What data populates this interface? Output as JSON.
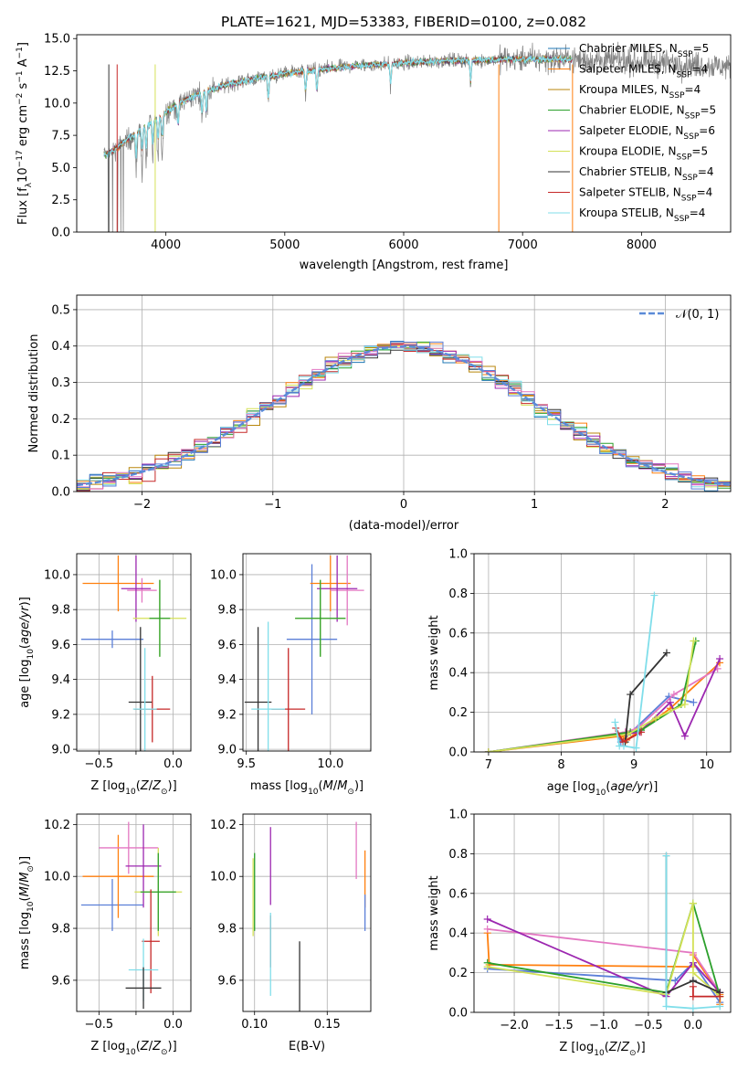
{
  "figure_title": "PLATE=1621, MJD=53383, FIBERID=0100, z=0.082",
  "models": [
    {
      "label": "Chabrier MILES, N",
      "nssp": "=5",
      "color": "#1f77b4"
    },
    {
      "label": "Salpeter MILES, N",
      "nssp": "=4",
      "color": "#ff7f0e"
    },
    {
      "label": "Kroupa MILES, N",
      "nssp": "=4",
      "color": "#b8860b"
    },
    {
      "label": "Chabrier ELODIE, N",
      "nssp": "=5",
      "color": "#2ca02c"
    },
    {
      "label": "Salpeter ELODIE, N",
      "nssp": "=6",
      "color": "#9c27b0"
    },
    {
      "label": "Kroupa ELODIE, N",
      "nssp": "=5",
      "color": "#d4e157"
    },
    {
      "label": "Chabrier STELIB, N",
      "nssp": "=4",
      "color": "#333333"
    },
    {
      "label": "Salpeter STELIB, N",
      "nssp": "=4",
      "color": "#c62828"
    },
    {
      "label": "Kroupa STELIB, N",
      "nssp": "=4",
      "color": "#80deea"
    }
  ],
  "chart_data": [
    {
      "id": "spectrum",
      "type": "line",
      "xlabel": "wavelength [Angstrom, rest frame]",
      "ylabel": "Flux [f",
      "xlim": [
        3250,
        8750
      ],
      "ylim": [
        0,
        15.3
      ],
      "xticks": [
        4000,
        5000,
        6000,
        7000,
        8000
      ],
      "yticks": [
        0.0,
        2.5,
        5.0,
        7.5,
        10.0,
        12.5,
        15.0
      ],
      "data_color": "#808080",
      "data_anchor_x": [
        3500,
        3550,
        3600,
        3650,
        3700,
        3750,
        3800,
        3850,
        3900,
        3950,
        4000,
        4100,
        4200,
        4300,
        4400,
        4500,
        4600,
        4700,
        4800,
        4900,
        5000,
        5200,
        5400,
        5600,
        5800,
        6000,
        6200,
        6400,
        6600,
        6800,
        7000,
        7200,
        7400,
        7600,
        7800,
        8000,
        8200,
        8400,
        8600,
        8750
      ],
      "data_anchor_y": [
        6.0,
        6.3,
        6.6,
        7.0,
        7.3,
        7.6,
        8.0,
        8.3,
        8.6,
        8.9,
        9.3,
        9.9,
        10.4,
        10.8,
        11.1,
        11.4,
        11.6,
        11.8,
        12.0,
        12.1,
        12.3,
        12.5,
        12.7,
        12.9,
        13.0,
        13.1,
        13.2,
        13.3,
        13.3,
        13.4,
        13.4,
        13.4,
        13.4,
        13.3,
        13.3,
        13.2,
        13.1,
        13.0,
        12.9,
        12.8
      ],
      "model_end_x": 7420
    },
    {
      "id": "residual_hist",
      "type": "histogram",
      "xlabel": "(data-model)/error",
      "ylabel": "Normed distribution",
      "xlim": [
        -2.5,
        2.5
      ],
      "ylim": [
        0,
        0.54
      ],
      "xticks": [
        -2,
        -1,
        0,
        1,
        2
      ],
      "yticks": [
        0.0,
        0.1,
        0.2,
        0.3,
        0.4,
        0.5
      ],
      "bin_width": 0.1,
      "legend": "𝒩(0, 1)",
      "legend_color": "#5b8bd8"
    },
    {
      "id": "age_vs_Z",
      "type": "errorbar",
      "xlabel": "Z [log",
      "ylabel": "age  [log",
      "xlim": [
        -0.65,
        0.12
      ],
      "ylim": [
        8.99,
        10.12
      ],
      "xticks": [
        -0.5,
        -0.25,
        0.0
      ],
      "xtick_labels": [
        "−0.5",
        "",
        "0.0"
      ],
      "yticks": [
        9.0,
        9.2,
        9.4,
        9.6,
        9.8,
        10.0
      ],
      "points": [
        {
          "x": -0.41,
          "xe": 0.21,
          "y": 9.63,
          "ye": 0.05,
          "c": "#5b7fd8"
        },
        {
          "x": -0.37,
          "xe": 0.24,
          "y": 9.95,
          "ye": 0.16,
          "c": "#ff7f0e"
        },
        {
          "x": -0.21,
          "xe": 0.1,
          "y": 9.91,
          "ye": 0.07,
          "c": "#e377c2"
        },
        {
          "x": -0.25,
          "xe": 0.1,
          "y": 9.92,
          "ye": 0.19,
          "c": "#9c27b0"
        },
        {
          "x": -0.09,
          "xe": 0.18,
          "y": 9.75,
          "ye": 0.22,
          "c": "#d4e157"
        },
        {
          "x": -0.09,
          "xe": 0.07,
          "y": 9.75,
          "ye": 0.22,
          "c": "#2ca02c"
        },
        {
          "x": -0.22,
          "xe": 0.08,
          "y": 9.27,
          "ye": 0.43,
          "c": "#333333"
        },
        {
          "x": -0.14,
          "xe": 0.12,
          "y": 9.23,
          "ye": 0.19,
          "c": "#c62828"
        },
        {
          "x": -0.19,
          "xe": 0.08,
          "y": 9.23,
          "ye": 0.35,
          "c": "#80deea"
        }
      ]
    },
    {
      "id": "age_vs_mass",
      "type": "errorbar",
      "xlabel": "mass [log",
      "ylabel": "",
      "xlim": [
        9.48,
        10.24
      ],
      "ylim": [
        8.99,
        10.12
      ],
      "xticks": [
        9.5,
        10.0
      ],
      "yticks": [
        9.0,
        9.2,
        9.4,
        9.6,
        9.8,
        10.0
      ],
      "points": [
        {
          "x": 9.89,
          "xe": 0.15,
          "y": 9.63,
          "ye": 0.43,
          "c": "#5b7fd8"
        },
        {
          "x": 10.0,
          "xe": 0.12,
          "y": 9.95,
          "ye": 0.16,
          "c": "#ff7f0e"
        },
        {
          "x": 10.1,
          "xe": 0.1,
          "y": 9.91,
          "ye": 0.2,
          "c": "#e377c2"
        },
        {
          "x": 10.04,
          "xe": 0.12,
          "y": 9.92,
          "ye": 0.19,
          "c": "#9c27b0"
        },
        {
          "x": 9.94,
          "xe": 0.15,
          "y": 9.75,
          "ye": 0.22,
          "c": "#d4e157"
        },
        {
          "x": 9.94,
          "xe": 0.15,
          "y": 9.75,
          "ye": 0.22,
          "c": "#2ca02c"
        },
        {
          "x": 9.57,
          "xe": 0.08,
          "y": 9.27,
          "ye": 0.43,
          "c": "#333333"
        },
        {
          "x": 9.75,
          "xe": 0.1,
          "y": 9.23,
          "ye": 0.35,
          "c": "#c62828"
        },
        {
          "x": 9.63,
          "xe": 0.1,
          "y": 9.23,
          "ye": 0.5,
          "c": "#80deea"
        }
      ]
    },
    {
      "id": "weight_vs_age",
      "type": "line",
      "xlabel": "age  [log",
      "ylabel": "mass weight",
      "xlim": [
        6.8,
        10.33
      ],
      "ylim": [
        0,
        1.0
      ],
      "xticks": [
        7,
        8,
        9,
        10
      ],
      "yticks": [
        0.0,
        0.2,
        0.4,
        0.6,
        0.8,
        1.0
      ],
      "series": [
        {
          "c": "#5b7fd8",
          "x": [
            7.0,
            8.78,
            8.82,
            9.48,
            9.82
          ],
          "y": [
            0.0,
            0.09,
            0.05,
            0.28,
            0.25
          ]
        },
        {
          "c": "#ff7f0e",
          "x": [
            7.0,
            8.83,
            8.9,
            9.5,
            10.18
          ],
          "y": [
            0.0,
            0.08,
            0.06,
            0.22,
            0.45
          ]
        },
        {
          "c": "#e377c2",
          "x": [
            7.0,
            8.88,
            9.05,
            9.55,
            10.15
          ],
          "y": [
            0.0,
            0.1,
            0.12,
            0.29,
            0.42
          ]
        },
        {
          "c": "#9c27b0",
          "x": [
            7.0,
            8.9,
            9.08,
            9.5,
            9.7,
            10.18
          ],
          "y": [
            0.0,
            0.09,
            0.1,
            0.25,
            0.08,
            0.47
          ]
        },
        {
          "c": "#2ca02c",
          "x": [
            7.0,
            8.95,
            9.1,
            9.65,
            9.85
          ],
          "y": [
            0.0,
            0.1,
            0.11,
            0.24,
            0.56
          ]
        },
        {
          "c": "#d4e157",
          "x": [
            7.0,
            8.92,
            9.3,
            9.7,
            9.82
          ],
          "y": [
            0.0,
            0.09,
            0.17,
            0.24,
            0.56
          ]
        },
        {
          "c": "#333333",
          "x": [
            8.88,
            8.95,
            9.45
          ],
          "y": [
            0.05,
            0.29,
            0.5
          ]
        },
        {
          "c": "#c62828",
          "x": [
            8.75,
            8.85,
            9.1
          ],
          "y": [
            0.12,
            0.05,
            0.1
          ]
        },
        {
          "c": "#80deea",
          "x": [
            8.74,
            8.8,
            8.86,
            9.03,
            9.28
          ],
          "y": [
            0.15,
            0.03,
            0.03,
            0.02,
            0.79
          ]
        }
      ]
    },
    {
      "id": "mass_vs_Z",
      "type": "errorbar",
      "xlabel": "Z [log",
      "ylabel": "mass [log",
      "xlim": [
        -0.65,
        0.12
      ],
      "ylim": [
        9.48,
        10.24
      ],
      "xticks": [
        -0.5,
        -0.25,
        0.0
      ],
      "xtick_labels": [
        "−0.5",
        "",
        "0.0"
      ],
      "yticks": [
        9.6,
        9.8,
        10.0,
        10.2
      ],
      "points": [
        {
          "x": -0.41,
          "xe": 0.21,
          "y": 9.89,
          "ye": 0.1,
          "c": "#5b7fd8"
        },
        {
          "x": -0.37,
          "xe": 0.24,
          "y": 10.0,
          "ye": 0.16,
          "c": "#ff7f0e"
        },
        {
          "x": -0.3,
          "xe": 0.2,
          "y": 10.11,
          "ye": 0.1,
          "c": "#e377c2"
        },
        {
          "x": -0.2,
          "xe": 0.12,
          "y": 10.04,
          "ye": 0.16,
          "c": "#9c27b0"
        },
        {
          "x": -0.1,
          "xe": 0.16,
          "y": 9.94,
          "ye": 0.17,
          "c": "#d4e157"
        },
        {
          "x": -0.1,
          "xe": 0.12,
          "y": 9.94,
          "ye": 0.15,
          "c": "#2ca02c"
        },
        {
          "x": -0.15,
          "xe": 0.06,
          "y": 9.75,
          "ye": 0.2,
          "c": "#c62828"
        },
        {
          "x": -0.2,
          "xe": 0.1,
          "y": 9.64,
          "ye": 0.12,
          "c": "#80deea"
        },
        {
          "x": -0.2,
          "xe": 0.12,
          "y": 9.57,
          "ye": 0.08,
          "c": "#333333"
        }
      ]
    },
    {
      "id": "mass_vs_ebv",
      "type": "errorbar",
      "xlabel": "E(B-V)",
      "ylabel": "",
      "xlim": [
        0.092,
        0.18
      ],
      "ylim": [
        9.48,
        10.24
      ],
      "xticks": [
        0.1,
        0.15
      ],
      "yticks": [
        9.6,
        9.8,
        10.0,
        10.2
      ],
      "points": [
        {
          "x": 0.1,
          "xe": 0.0,
          "y": 9.94,
          "ye": 0.15,
          "c": "#2ca02c"
        },
        {
          "x": 0.099,
          "xe": 0.0,
          "y": 9.92,
          "ye": 0.15,
          "c": "#d4e157"
        },
        {
          "x": 0.111,
          "xe": 0.0,
          "y": 10.04,
          "ye": 0.15,
          "c": "#9c27b0"
        },
        {
          "x": 0.111,
          "xe": 0.0,
          "y": 9.75,
          "ye": 0.1,
          "c": "#c62828"
        },
        {
          "x": 0.111,
          "xe": 0.0,
          "y": 9.7,
          "ye": 0.16,
          "c": "#80deea"
        },
        {
          "x": 0.131,
          "xe": 0.0,
          "y": 9.6,
          "ye": 0.15,
          "c": "#333333"
        },
        {
          "x": 0.17,
          "xe": 0.0,
          "y": 10.1,
          "ye": 0.11,
          "c": "#e377c2"
        },
        {
          "x": 0.176,
          "xe": 0.0,
          "y": 9.99,
          "ye": 0.11,
          "c": "#ff7f0e"
        },
        {
          "x": 0.176,
          "xe": 0.0,
          "y": 9.86,
          "ye": 0.07,
          "c": "#5b7fd8"
        }
      ]
    },
    {
      "id": "weight_vs_Z",
      "type": "line",
      "xlabel": "Z [log",
      "ylabel": "mass weight",
      "xlim": [
        -2.45,
        0.42
      ],
      "ylim": [
        0,
        1.0
      ],
      "xticks": [
        -2.0,
        -1.5,
        -1.0,
        -0.5,
        0.0
      ],
      "yticks": [
        0.0,
        0.2,
        0.4,
        0.6,
        0.8,
        1.0
      ],
      "series": [
        {
          "c": "#5b7fd8",
          "x": [
            -2.3,
            -0.2,
            0.0,
            0.3
          ],
          "y": [
            0.22,
            0.16,
            0.25,
            0.05
          ]
        },
        {
          "c": "#ff7f0e",
          "x": [
            -2.3,
            -2.28,
            0.0,
            0.0,
            0.3,
            0.3
          ],
          "y": [
            0.4,
            0.24,
            0.23,
            0.29,
            0.09,
            0.04
          ]
        },
        {
          "c": "#e377c2",
          "x": [
            -2.3,
            0.0,
            0.3
          ],
          "y": [
            0.42,
            0.3,
            0.1
          ]
        },
        {
          "c": "#9c27b0",
          "x": [
            -2.3,
            -0.3,
            0.0,
            0.3
          ],
          "y": [
            0.47,
            0.08,
            0.25,
            0.1
          ]
        },
        {
          "c": "#2ca02c",
          "x": [
            -2.3,
            -0.3,
            0.0,
            0.3
          ],
          "y": [
            0.25,
            0.1,
            0.55,
            0.08
          ]
        },
        {
          "c": "#d4e157",
          "x": [
            -2.3,
            -0.3,
            0.0,
            0.0,
            0.3
          ],
          "y": [
            0.23,
            0.09,
            0.55,
            0.2,
            0.08
          ]
        },
        {
          "c": "#333333",
          "x": [
            -0.3,
            -0.3,
            0.0,
            0.3
          ],
          "y": [
            0.79,
            0.1,
            0.16,
            0.1
          ]
        },
        {
          "c": "#c62828",
          "x": [
            0.0,
            0.0,
            0.3
          ],
          "y": [
            0.13,
            0.08,
            0.08
          ]
        },
        {
          "c": "#80deea",
          "x": [
            -0.3,
            -0.3,
            0.0,
            0.3
          ],
          "y": [
            0.79,
            0.03,
            0.02,
            0.03
          ]
        }
      ]
    }
  ]
}
